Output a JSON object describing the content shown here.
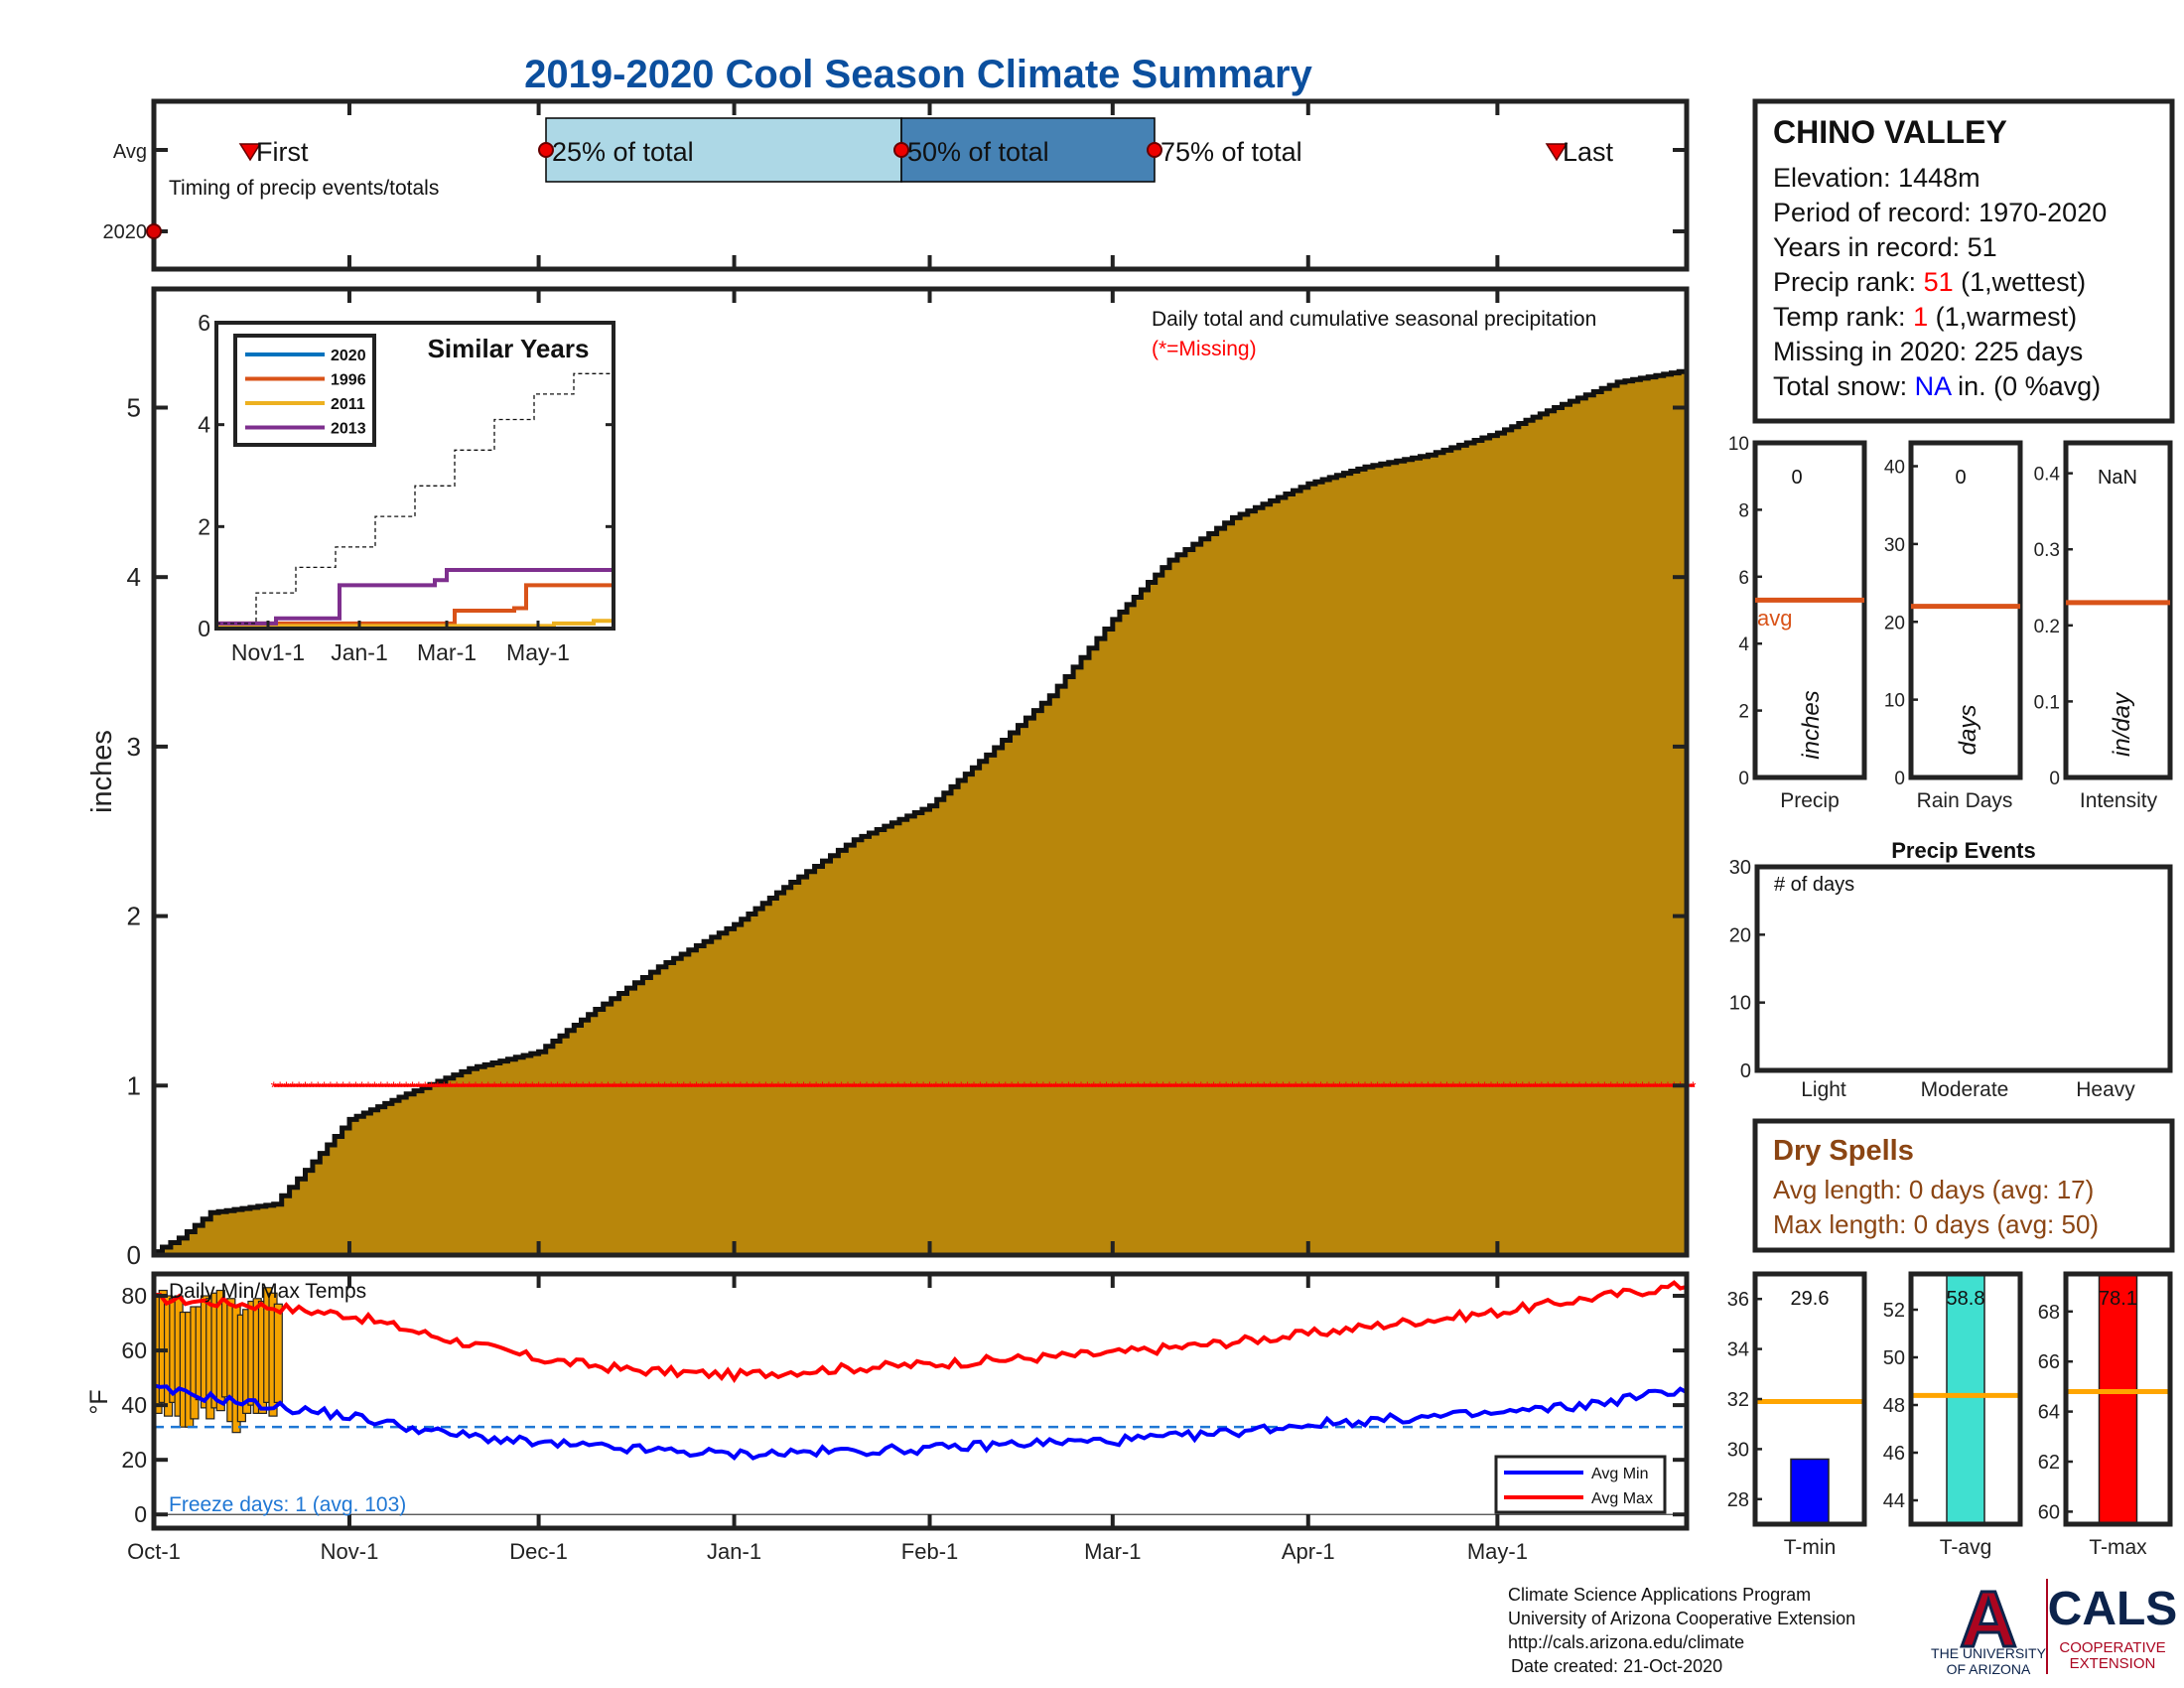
{
  "title": "2019-2020 Cool Season Climate Summary",
  "colors": {
    "title": "#0b4f9e",
    "fill": "#b8860b",
    "missing": "#ff0000",
    "q1": "#add8e6",
    "q2": "#4682b4",
    "tmin": "#0000ff",
    "tavg": "#40e0d0",
    "tmax": "#ff0000",
    "avgline": "#d95319",
    "avgTemp": "#ffa500",
    "dry": "#8b4513",
    "freeze": "#1f77d4",
    "blueText": "#0000ff"
  },
  "timing": {
    "ylabels": [
      "Avg",
      "2020"
    ],
    "note": "Timing of precip events/totals",
    "first_label": "First",
    "last_label": "Last",
    "p25_label": "25% of total",
    "p50_label": "50% of total",
    "p75_label": "75% of total"
  },
  "station": {
    "name": "CHINO VALLEY",
    "elevation": "Elevation: 1448m",
    "period": "Period of record: 1970-2020",
    "years": "Years in record: 51",
    "precip_rank_label": "Precip rank: ",
    "precip_rank_value": "51",
    "precip_rank_note": " (1,wettest)",
    "temp_rank_label": "Temp rank: ",
    "temp_rank_value": "1",
    "temp_rank_note": " (1,warmest)",
    "missing": "Missing in 2020: 225 days",
    "snow_label": "Total snow: ",
    "snow_value": "NA",
    "snow_note": " in. (0 %avg)"
  },
  "main_plot": {
    "annotation": "Daily total and cumulative seasonal precipitation",
    "missing_note": "(*=Missing)",
    "ylabel": "inches",
    "yticks": [
      "0",
      "1",
      "2",
      "3",
      "4",
      "5"
    ],
    "xticks": [
      "Oct-1",
      "Nov-1",
      "Dec-1",
      "Jan-1",
      "Feb-1",
      "Mar-1",
      "Apr-1",
      "May-1"
    ]
  },
  "similar_years": {
    "title": "Similar Years",
    "yticks": [
      "0",
      "2",
      "4",
      "6"
    ],
    "xticks": [
      "Nov1-1",
      "Jan-1",
      "Mar-1",
      "May-1"
    ],
    "legend": [
      "2020",
      "1996",
      "2011",
      "2013"
    ]
  },
  "bars": {
    "precip": {
      "value_label": "0",
      "unit": "inches",
      "xlabel": "Precip",
      "avg_label": "avg",
      "yticks": [
        "0",
        "2",
        "4",
        "6",
        "8",
        "10"
      ]
    },
    "raindays": {
      "value_label": "0",
      "unit": "days",
      "xlabel": "Rain Days",
      "yticks": [
        "0",
        "10",
        "20",
        "30",
        "40"
      ]
    },
    "intensity": {
      "value_label": "NaN",
      "unit": "in/day",
      "xlabel": "Intensity",
      "yticks": [
        "0",
        "0.1",
        "0.2",
        "0.3",
        "0.4"
      ]
    }
  },
  "events": {
    "title": "Precip Events",
    "ylabel": "# of days",
    "yticks": [
      "0",
      "10",
      "20",
      "30"
    ],
    "categories": [
      "Light",
      "Moderate",
      "Heavy"
    ]
  },
  "dry_spells": {
    "title": "Dry Spells",
    "avg": "Avg length: 0 days (avg: 17)",
    "max": "Max length: 0 days (avg: 50)"
  },
  "temps": {
    "title": "Daily Min/Max Temps",
    "ylabel": "°F",
    "yticks": [
      "0",
      "20",
      "40",
      "60",
      "80"
    ],
    "freeze": "Freeze days: 1 (avg. 103)",
    "legend_min": "Avg Min",
    "legend_max": "Avg Max"
  },
  "temp_bars": {
    "tmin": {
      "label": "T-min",
      "value": "29.6",
      "yticks": [
        "28",
        "30",
        "32",
        "34",
        "36"
      ]
    },
    "tavg": {
      "label": "T-avg",
      "value": "58.8",
      "yticks": [
        "44",
        "46",
        "48",
        "50",
        "52"
      ]
    },
    "tmax": {
      "label": "T-max",
      "value": "78.1",
      "yticks": [
        "60",
        "62",
        "64",
        "66",
        "68"
      ]
    }
  },
  "footer": {
    "line1": "Climate Science Applications Program",
    "line2": "University of Arizona Cooperative Extension",
    "line3": "http://cals.arizona.edu/climate",
    "line4": "Date created: 21-Oct-2020",
    "ua_logo": "A",
    "ua1": "THE UNIVERSITY",
    "ua2": "OF ARIZONA",
    "cals": "CALS",
    "cals1": "COOPERATIVE",
    "cals2": "EXTENSION"
  },
  "chart_data": [
    {
      "type": "area",
      "title": "Daily total and cumulative seasonal precipitation",
      "ylabel": "inches",
      "ylim": [
        0,
        5.7
      ],
      "x_dates": [
        "Oct-1",
        "Oct-5",
        "Oct-10",
        "Oct-20",
        "Oct-25",
        "Nov-1",
        "Nov-10",
        "Nov-20",
        "Dec-1",
        "Dec-10",
        "Dec-20",
        "Jan-1",
        "Jan-10",
        "Jan-20",
        "Feb-1",
        "Feb-10",
        "Feb-20",
        "Mar-1",
        "Mar-10",
        "Mar-20",
        "Apr-1",
        "Apr-10",
        "Apr-20",
        "May-1",
        "May-10",
        "May-20",
        "May-31"
      ],
      "cumulative_inches": [
        0.02,
        0.1,
        0.25,
        0.3,
        0.5,
        0.8,
        0.95,
        1.1,
        1.2,
        1.45,
        1.7,
        1.95,
        2.2,
        2.45,
        2.65,
        2.95,
        3.3,
        3.75,
        4.1,
        4.35,
        4.55,
        4.65,
        4.72,
        4.85,
        5.0,
        5.15,
        5.22
      ],
      "missing_marker": {
        "y": 1,
        "from": "Oct-20",
        "to": "May-31"
      }
    },
    {
      "type": "line",
      "title": "Similar Years",
      "ylim": [
        0,
        6
      ],
      "x_ticks": [
        "Nov1-1",
        "Jan-1",
        "Mar-1",
        "May-1"
      ],
      "series": [
        {
          "name": "2020",
          "x": [
            0,
            1
          ],
          "values": [
            0.0,
            0.0
          ]
        },
        {
          "name": "1996",
          "x": [
            0,
            0.55,
            0.6,
            0.75,
            0.78,
            1
          ],
          "values": [
            0.1,
            0.1,
            0.35,
            0.4,
            0.85,
            0.85
          ]
        },
        {
          "name": "2011",
          "x": [
            0,
            0.85,
            0.95,
            1
          ],
          "values": [
            0.05,
            0.1,
            0.15,
            0.4
          ]
        },
        {
          "name": "2013",
          "x": [
            0,
            0.15,
            0.3,
            0.31,
            0.55,
            0.58,
            1
          ],
          "values": [
            0.1,
            0.2,
            0.2,
            0.85,
            0.95,
            1.15,
            1.2
          ]
        },
        {
          "name": "",
          "x": [
            0,
            0.1,
            0.2,
            0.3,
            0.4,
            0.5,
            0.6,
            0.7,
            0.8,
            0.9,
            1
          ],
          "values": [
            0.1,
            0.7,
            1.2,
            1.6,
            2.2,
            2.8,
            3.5,
            4.1,
            4.6,
            5.0,
            5.3
          ]
        }
      ]
    },
    {
      "type": "line",
      "title": "Daily Min/Max Temps",
      "ylabel": "°F",
      "ylim": [
        -5,
        88
      ],
      "x_dates": [
        "Oct-1",
        "Oct-15",
        "Nov-1",
        "Nov-15",
        "Dec-1",
        "Dec-15",
        "Jan-1",
        "Jan-15",
        "Feb-1",
        "Feb-15",
        "Mar-1",
        "Mar-15",
        "Apr-1",
        "Apr-15",
        "May-1",
        "May-15",
        "May-31"
      ],
      "series": [
        {
          "name": "Avg Max",
          "values": [
            79,
            77,
            73,
            65,
            57,
            53,
            51,
            53,
            55,
            57,
            59,
            62,
            66,
            70,
            74,
            79,
            84
          ]
        },
        {
          "name": "Avg Min",
          "values": [
            46,
            41,
            36,
            30,
            26,
            24,
            22,
            23,
            24,
            26,
            27,
            29,
            33,
            35,
            37,
            40,
            46
          ]
        }
      ],
      "freeze_line": 32,
      "daily_bars_oct": [
        80,
        83,
        82,
        79,
        81,
        76,
        74,
        77,
        78,
        80
      ]
    },
    {
      "type": "bar",
      "categories": [
        "T-min",
        "T-avg",
        "T-max"
      ],
      "values": [
        29.6,
        58.8,
        78.1
      ],
      "averages": [
        31.9,
        48.4,
        64.8
      ]
    },
    {
      "type": "bar",
      "categories": [
        "Precip",
        "Rain Days",
        "Intensity"
      ],
      "values": [
        0,
        0,
        null
      ],
      "averages": [
        5.3,
        22,
        0.23
      ]
    },
    {
      "type": "bar",
      "title": "Precip Events",
      "categories": [
        "Light",
        "Moderate",
        "Heavy"
      ],
      "values": [
        0,
        0,
        0
      ],
      "ylim": [
        0,
        30
      ]
    }
  ]
}
